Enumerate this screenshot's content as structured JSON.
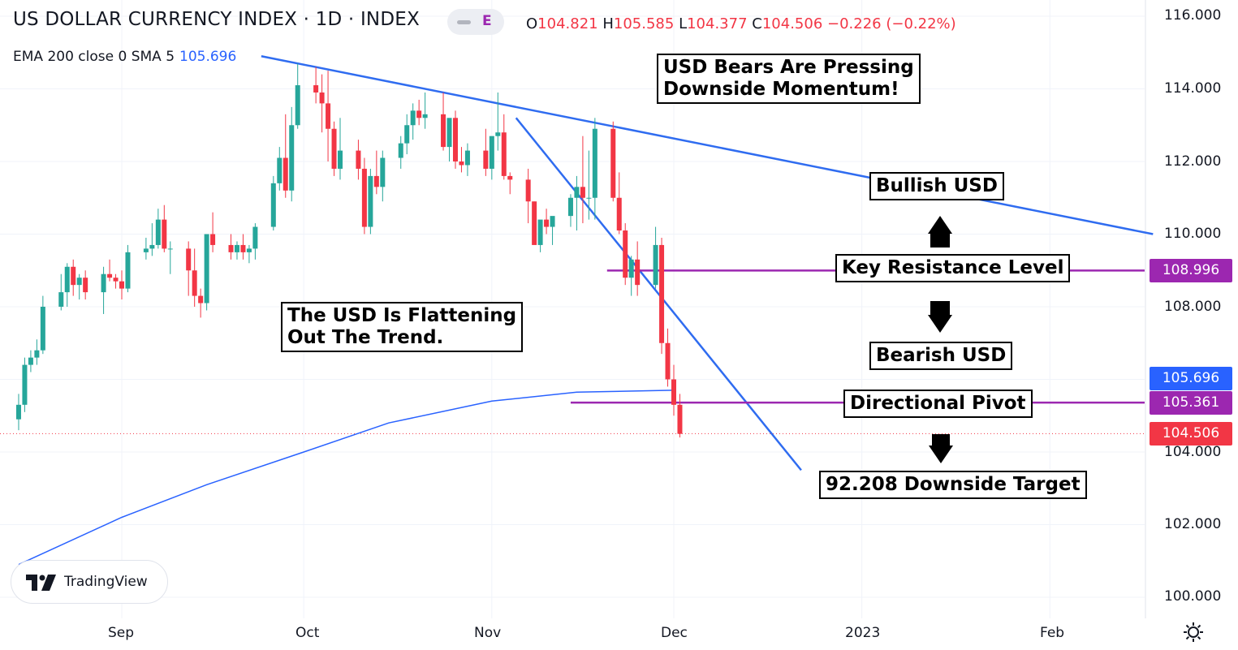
{
  "header": {
    "title": "US DOLLAR CURRENCY INDEX · 1D · INDEX",
    "pill_letter": "E",
    "ohlc": {
      "o_label": "O",
      "o": "104.821",
      "h_label": "H",
      "h": "105.585",
      "l_label": "L",
      "l": "104.377",
      "c_label": "C",
      "c": "104.506",
      "change": "−0.226 (−0.22%)"
    },
    "indicator_label": "EMA 200 close 0 SMA 5",
    "indicator_value": "105.696"
  },
  "annotations": {
    "bears": [
      "USD Bears Are Pressing",
      "Downside Momentum!"
    ],
    "flattening": [
      "The USD Is Flattening",
      "Out The Trend."
    ],
    "bullish": "Bullish USD",
    "resistance": "Key Resistance Level",
    "bearish": "Bearish USD",
    "pivot": "Directional Pivot",
    "target": "92.208 Downside Target"
  },
  "price_tags": {
    "resistance": "108.996",
    "ema": "105.696",
    "pivot": "105.361",
    "last": "104.506"
  },
  "y_axis_labels": [
    "116.000",
    "114.000",
    "112.000",
    "110.000",
    "108.000",
    "104.000",
    "102.000",
    "100.000"
  ],
  "x_axis_labels": [
    "Sep",
    "Oct",
    "Nov",
    "Dec",
    "2023",
    "Feb"
  ],
  "branding": "TradingView",
  "colors": {
    "up": "#26a69a",
    "down": "#f23645",
    "trendline": "#2f6cf0",
    "ema": "#2962ff",
    "level": "#9c27b0",
    "last_price": "#f23645"
  },
  "chart_data": {
    "type": "candlestick",
    "title": "US DOLLAR CURRENCY INDEX · 1D · INDEX",
    "ylim": [
      99.5,
      116.5
    ],
    "x_domain": [
      "2022-08-15",
      "2023-02-28"
    ],
    "candles": [
      {
        "d": "2022-08-15",
        "o": 104.9,
        "h": 105.6,
        "l": 104.6,
        "c": 105.3
      },
      {
        "d": "2022-08-16",
        "o": 105.3,
        "h": 106.6,
        "l": 105.1,
        "c": 106.4
      },
      {
        "d": "2022-08-17",
        "o": 106.4,
        "h": 106.8,
        "l": 106.2,
        "c": 106.6
      },
      {
        "d": "2022-08-18",
        "o": 106.6,
        "h": 107.1,
        "l": 106.4,
        "c": 106.8
      },
      {
        "d": "2022-08-19",
        "o": 106.8,
        "h": 108.3,
        "l": 106.7,
        "c": 108.0
      },
      {
        "d": "2022-08-22",
        "o": 108.0,
        "h": 108.9,
        "l": 107.9,
        "c": 108.4
      },
      {
        "d": "2022-08-23",
        "o": 108.4,
        "h": 109.2,
        "l": 108.0,
        "c": 109.1
      },
      {
        "d": "2022-08-24",
        "o": 109.1,
        "h": 109.3,
        "l": 108.3,
        "c": 108.6
      },
      {
        "d": "2022-08-25",
        "o": 108.6,
        "h": 108.9,
        "l": 108.2,
        "c": 108.8
      },
      {
        "d": "2022-08-26",
        "o": 108.8,
        "h": 109.0,
        "l": 108.2,
        "c": 108.4
      },
      {
        "d": "2022-08-29",
        "o": 108.4,
        "h": 109.1,
        "l": 107.8,
        "c": 108.9
      },
      {
        "d": "2022-08-30",
        "o": 108.9,
        "h": 109.3,
        "l": 108.7,
        "c": 108.8
      },
      {
        "d": "2022-08-31",
        "o": 108.8,
        "h": 108.9,
        "l": 108.5,
        "c": 108.7
      },
      {
        "d": "2022-09-01",
        "o": 108.7,
        "h": 109.0,
        "l": 108.2,
        "c": 108.5
      },
      {
        "d": "2022-09-02",
        "o": 108.5,
        "h": 109.7,
        "l": 108.4,
        "c": 109.5
      },
      {
        "d": "2022-09-05",
        "o": 109.5,
        "h": 109.9,
        "l": 109.3,
        "c": 109.6
      },
      {
        "d": "2022-09-06",
        "o": 109.6,
        "h": 110.3,
        "l": 109.4,
        "c": 109.7
      },
      {
        "d": "2022-09-07",
        "o": 109.7,
        "h": 110.7,
        "l": 109.6,
        "c": 110.4
      },
      {
        "d": "2022-09-08",
        "o": 110.4,
        "h": 110.8,
        "l": 109.5,
        "c": 109.6
      },
      {
        "d": "2022-09-09",
        "o": 109.6,
        "h": 109.8,
        "l": 108.9,
        "c": 109.6
      },
      {
        "d": "2022-09-12",
        "o": 109.6,
        "h": 109.8,
        "l": 108.3,
        "c": 109.0
      },
      {
        "d": "2022-09-13",
        "o": 109.0,
        "h": 109.6,
        "l": 108.0,
        "c": 108.3
      },
      {
        "d": "2022-09-14",
        "o": 108.3,
        "h": 108.5,
        "l": 107.7,
        "c": 108.1
      },
      {
        "d": "2022-09-15",
        "o": 108.1,
        "h": 110.0,
        "l": 107.9,
        "c": 110.0
      },
      {
        "d": "2022-09-16",
        "o": 110.0,
        "h": 110.6,
        "l": 109.5,
        "c": 109.7
      },
      {
        "d": "2022-09-19",
        "o": 109.7,
        "h": 110.0,
        "l": 109.3,
        "c": 109.5
      },
      {
        "d": "2022-09-20",
        "o": 109.5,
        "h": 109.8,
        "l": 109.3,
        "c": 109.7
      },
      {
        "d": "2022-09-21",
        "o": 109.7,
        "h": 110.0,
        "l": 109.3,
        "c": 109.5
      },
      {
        "d": "2022-09-22",
        "o": 109.5,
        "h": 109.7,
        "l": 109.2,
        "c": 109.6
      },
      {
        "d": "2022-09-23",
        "o": 109.6,
        "h": 110.3,
        "l": 109.3,
        "c": 110.2
      },
      {
        "d": "2022-09-26",
        "o": 110.2,
        "h": 111.6,
        "l": 110.1,
        "c": 111.4
      },
      {
        "d": "2022-09-27",
        "o": 111.4,
        "h": 112.4,
        "l": 111.2,
        "c": 112.1
      },
      {
        "d": "2022-09-28",
        "o": 112.1,
        "h": 113.3,
        "l": 111.0,
        "c": 111.2
      },
      {
        "d": "2022-09-29",
        "o": 111.2,
        "h": 113.5,
        "l": 110.9,
        "c": 113.0
      },
      {
        "d": "2022-09-30",
        "o": 113.0,
        "h": 114.7,
        "l": 112.9,
        "c": 114.1
      },
      {
        "d": "2022-10-03",
        "o": 114.1,
        "h": 114.6,
        "l": 113.6,
        "c": 113.9
      },
      {
        "d": "2022-10-04",
        "o": 113.9,
        "h": 114.4,
        "l": 112.8,
        "c": 113.6
      },
      {
        "d": "2022-10-05",
        "o": 113.6,
        "h": 114.5,
        "l": 112.0,
        "c": 112.9
      },
      {
        "d": "2022-10-06",
        "o": 112.9,
        "h": 113.1,
        "l": 111.6,
        "c": 111.8
      },
      {
        "d": "2022-10-07",
        "o": 111.8,
        "h": 113.2,
        "l": 111.5,
        "c": 112.3
      },
      {
        "d": "2022-10-10",
        "o": 112.3,
        "h": 112.6,
        "l": 111.5,
        "c": 111.8
      },
      {
        "d": "2022-10-11",
        "o": 111.8,
        "h": 112.1,
        "l": 110.0,
        "c": 110.2
      },
      {
        "d": "2022-10-12",
        "o": 110.2,
        "h": 111.8,
        "l": 110.0,
        "c": 111.6
      },
      {
        "d": "2022-10-13",
        "o": 111.6,
        "h": 112.3,
        "l": 111.1,
        "c": 111.3
      },
      {
        "d": "2022-10-14",
        "o": 111.3,
        "h": 112.3,
        "l": 110.9,
        "c": 112.1
      },
      {
        "d": "2022-10-17",
        "o": 112.1,
        "h": 112.7,
        "l": 111.8,
        "c": 112.5
      },
      {
        "d": "2022-10-18",
        "o": 112.5,
        "h": 113.3,
        "l": 112.2,
        "c": 113.0
      },
      {
        "d": "2022-10-19",
        "o": 113.0,
        "h": 113.6,
        "l": 112.6,
        "c": 113.4
      },
      {
        "d": "2022-10-20",
        "o": 113.4,
        "h": 113.7,
        "l": 113.0,
        "c": 113.2
      },
      {
        "d": "2022-10-21",
        "o": 113.2,
        "h": 113.9,
        "l": 112.9,
        "c": 113.3
      },
      {
        "d": "2022-10-24",
        "o": 113.3,
        "h": 113.9,
        "l": 112.3,
        "c": 112.4
      },
      {
        "d": "2022-10-25",
        "o": 112.4,
        "h": 113.1,
        "l": 112.0,
        "c": 113.2
      },
      {
        "d": "2022-10-26",
        "o": 113.2,
        "h": 113.4,
        "l": 111.8,
        "c": 112.0
      },
      {
        "d": "2022-10-27",
        "o": 112.0,
        "h": 112.4,
        "l": 111.7,
        "c": 111.9
      },
      {
        "d": "2022-10-28",
        "o": 111.9,
        "h": 112.5,
        "l": 111.6,
        "c": 112.3
      },
      {
        "d": "2022-10-31",
        "o": 112.3,
        "h": 112.9,
        "l": 111.6,
        "c": 111.8
      },
      {
        "d": "2022-11-01",
        "o": 111.8,
        "h": 112.6,
        "l": 111.5,
        "c": 112.7
      },
      {
        "d": "2022-11-02",
        "o": 112.7,
        "h": 113.9,
        "l": 112.3,
        "c": 112.8
      },
      {
        "d": "2022-11-03",
        "o": 112.8,
        "h": 113.3,
        "l": 111.5,
        "c": 111.6
      },
      {
        "d": "2022-11-04",
        "o": 111.6,
        "h": 111.7,
        "l": 111.1,
        "c": 111.5
      },
      {
        "d": "2022-11-07",
        "o": 111.5,
        "h": 111.8,
        "l": 110.3,
        "c": 110.9
      },
      {
        "d": "2022-11-08",
        "o": 110.9,
        "h": 110.9,
        "l": 109.8,
        "c": 109.7
      },
      {
        "d": "2022-11-09",
        "o": 109.7,
        "h": 110.3,
        "l": 109.5,
        "c": 110.4
      },
      {
        "d": "2022-11-10",
        "o": 110.4,
        "h": 110.7,
        "l": 110.0,
        "c": 110.2
      },
      {
        "d": "2022-11-11",
        "o": 110.2,
        "h": 110.4,
        "l": 109.7,
        "c": 110.5
      },
      {
        "d": "2022-11-14",
        "o": 110.5,
        "h": 111.1,
        "l": 110.2,
        "c": 111.0
      },
      {
        "d": "2022-11-15",
        "o": 111.0,
        "h": 111.6,
        "l": 110.1,
        "c": 111.3
      },
      {
        "d": "2022-11-16",
        "o": 111.3,
        "h": 112.7,
        "l": 110.3,
        "c": 111.0
      },
      {
        "d": "2022-11-17",
        "o": 111.0,
        "h": 112.3,
        "l": 110.4,
        "c": 111.0
      },
      {
        "d": "2022-11-18",
        "o": 111.0,
        "h": 113.2,
        "l": 110.4,
        "c": 112.9
      },
      {
        "d": "2022-11-21",
        "o": 112.9,
        "h": 113.1,
        "l": 110.9,
        "c": 111.0
      },
      {
        "d": "2022-11-22",
        "o": 111.0,
        "h": 111.7,
        "l": 110.0,
        "c": 110.1
      },
      {
        "d": "2022-11-23",
        "o": 110.1,
        "h": 110.3,
        "l": 108.6,
        "c": 108.8
      },
      {
        "d": "2022-11-24",
        "o": 108.8,
        "h": 109.4,
        "l": 108.3,
        "c": 109.3
      },
      {
        "d": "2022-11-25",
        "o": 109.3,
        "h": 109.8,
        "l": 108.3,
        "c": 108.6
      },
      {
        "d": "2022-11-28",
        "o": 108.6,
        "h": 110.2,
        "l": 108.5,
        "c": 109.7
      },
      {
        "d": "2022-11-29",
        "o": 109.7,
        "h": 109.9,
        "l": 106.7,
        "c": 107.0
      },
      {
        "d": "2022-11-30",
        "o": 107.0,
        "h": 107.4,
        "l": 105.8,
        "c": 106.0
      },
      {
        "d": "2022-12-01",
        "o": 106.0,
        "h": 106.4,
        "l": 105.0,
        "c": 105.3
      },
      {
        "d": "2022-12-02",
        "o": 105.3,
        "h": 105.6,
        "l": 104.4,
        "c": 104.5
      }
    ],
    "ema200": [
      {
        "d": "2022-08-15",
        "v": 100.9
      },
      {
        "d": "2022-09-01",
        "v": 102.2
      },
      {
        "d": "2022-09-15",
        "v": 103.1
      },
      {
        "d": "2022-10-01",
        "v": 104.0
      },
      {
        "d": "2022-10-15",
        "v": 104.8
      },
      {
        "d": "2022-11-01",
        "v": 105.4
      },
      {
        "d": "2022-11-15",
        "v": 105.65
      },
      {
        "d": "2022-12-01",
        "v": 105.7
      }
    ],
    "trendlines": [
      {
        "from": {
          "d": "2022-09-24",
          "v": 114.9
        },
        "to": {
          "d": "2023-02-18",
          "v": 110.0
        }
      },
      {
        "from": {
          "d": "2022-11-05",
          "v": 113.2
        },
        "to": {
          "d": "2022-12-22",
          "v": 103.5
        }
      }
    ],
    "levels": [
      {
        "from": "2022-11-20",
        "v": 108.996
      },
      {
        "from": "2022-11-14",
        "v": 105.361
      }
    ],
    "last_price": 104.506
  }
}
